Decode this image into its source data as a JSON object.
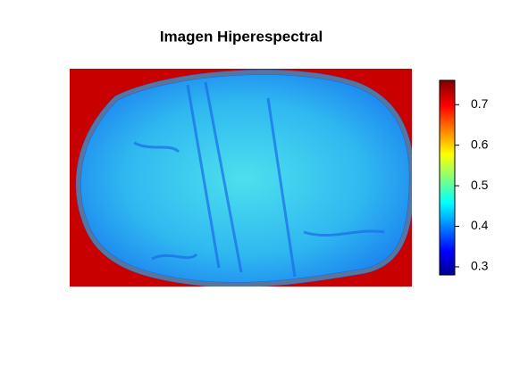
{
  "chart_data": {
    "type": "heatmap",
    "title": "Imagen Hiperespectral",
    "zlim": [
      0.28,
      0.76
    ],
    "zticks": [
      0.3,
      0.4,
      0.5,
      0.6,
      0.7
    ]
  }
}
